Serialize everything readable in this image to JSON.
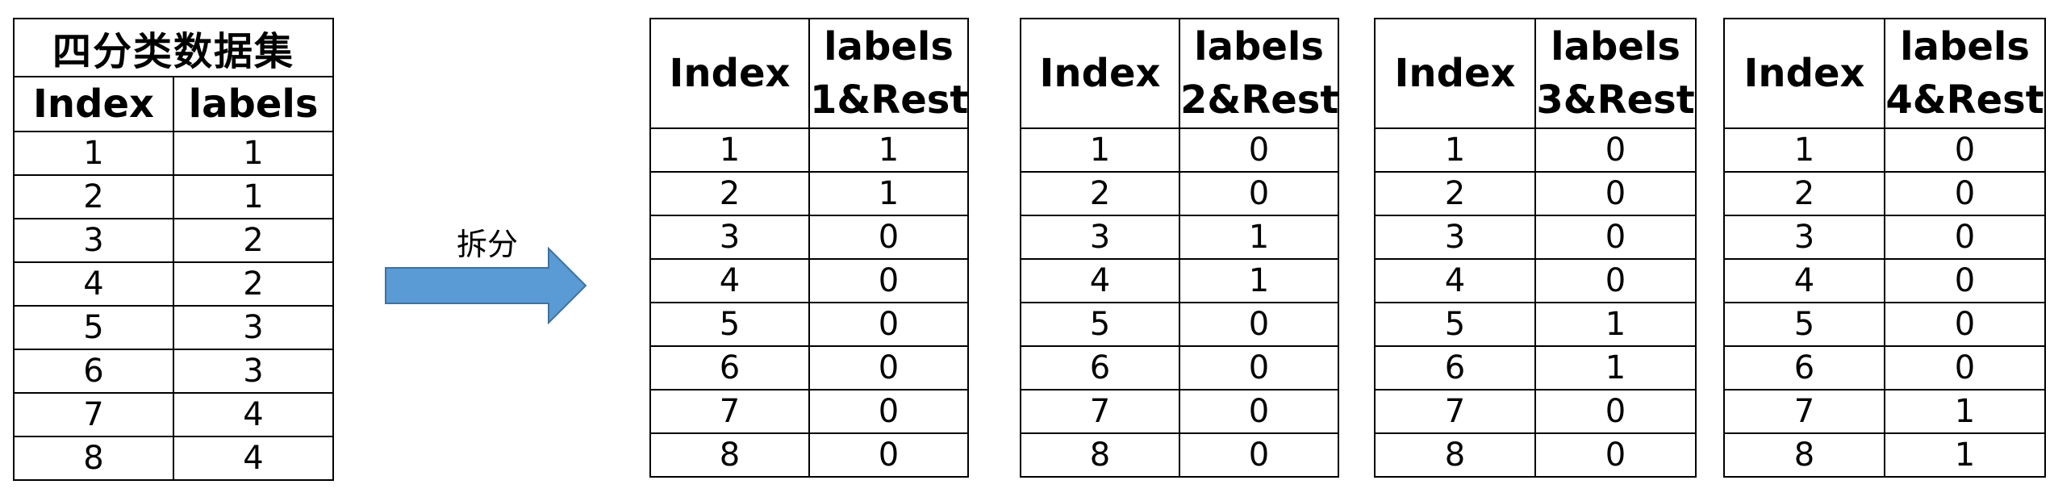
{
  "source": {
    "title": "四分类数据集",
    "headers": [
      "Index",
      "labels"
    ],
    "rows": [
      [
        "1",
        "1"
      ],
      [
        "2",
        "1"
      ],
      [
        "3",
        "2"
      ],
      [
        "4",
        "2"
      ],
      [
        "5",
        "3"
      ],
      [
        "6",
        "3"
      ],
      [
        "7",
        "4"
      ],
      [
        "8",
        "4"
      ]
    ]
  },
  "arrow": {
    "label": "拆分",
    "color": "#5B9BD5",
    "border_color": "#41719C"
  },
  "splits": [
    {
      "headers": [
        "Index",
        "labels\n1&Rest"
      ],
      "rows": [
        [
          "1",
          "1"
        ],
        [
          "2",
          "1"
        ],
        [
          "3",
          "0"
        ],
        [
          "4",
          "0"
        ],
        [
          "5",
          "0"
        ],
        [
          "6",
          "0"
        ],
        [
          "7",
          "0"
        ],
        [
          "8",
          "0"
        ]
      ]
    },
    {
      "headers": [
        "Index",
        "labels\n2&Rest"
      ],
      "rows": [
        [
          "1",
          "0"
        ],
        [
          "2",
          "0"
        ],
        [
          "3",
          "1"
        ],
        [
          "4",
          "1"
        ],
        [
          "5",
          "0"
        ],
        [
          "6",
          "0"
        ],
        [
          "7",
          "0"
        ],
        [
          "8",
          "0"
        ]
      ]
    },
    {
      "headers": [
        "Index",
        "labels\n3&Rest"
      ],
      "rows": [
        [
          "1",
          "0"
        ],
        [
          "2",
          "0"
        ],
        [
          "3",
          "0"
        ],
        [
          "4",
          "0"
        ],
        [
          "5",
          "1"
        ],
        [
          "6",
          "1"
        ],
        [
          "7",
          "0"
        ],
        [
          "8",
          "0"
        ]
      ]
    },
    {
      "headers": [
        "Index",
        "labels\n4&Rest"
      ],
      "rows": [
        [
          "1",
          "0"
        ],
        [
          "2",
          "0"
        ],
        [
          "3",
          "0"
        ],
        [
          "4",
          "0"
        ],
        [
          "5",
          "0"
        ],
        [
          "6",
          "0"
        ],
        [
          "7",
          "1"
        ],
        [
          "8",
          "1"
        ]
      ]
    }
  ]
}
